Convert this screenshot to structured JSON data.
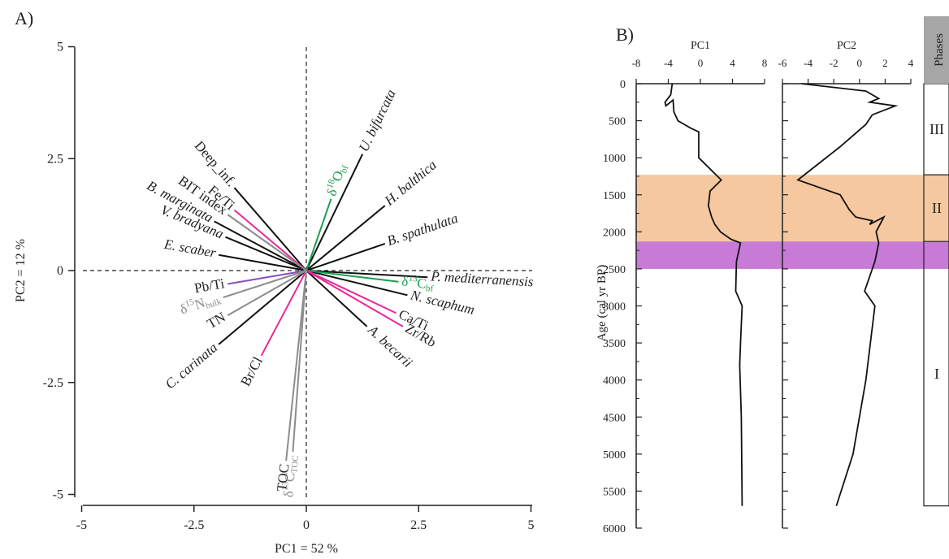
{
  "panels": {
    "a": "A)",
    "b": "B)"
  },
  "chart_data": [
    {
      "type": "scatter",
      "subtype": "pca-biplot",
      "panel": "A)",
      "title": "",
      "xlabel": "PC1 = 52 %",
      "ylabel": "PC2 = 12 %",
      "xlim": [
        -5,
        5
      ],
      "ylim": [
        -5,
        5
      ],
      "xticks": [
        "-5",
        "-2.5",
        "0",
        "2.5",
        "5"
      ],
      "yticks": [
        "5",
        "2.5",
        "0",
        "-2.5",
        "-5"
      ],
      "reference_lines": "dashed lines at x = 0 and y = 0",
      "grid": false,
      "vectors": [
        {
          "label": "U. bifurcata",
          "x": 1.25,
          "y": 2.6,
          "color": "#111111",
          "italic": true
        },
        {
          "label": "H. balthica",
          "x": 1.75,
          "y": 1.45,
          "color": "#111111",
          "italic": true
        },
        {
          "label": "B. spathulata",
          "x": 1.75,
          "y": 0.6,
          "color": "#111111",
          "italic": true
        },
        {
          "label": "P. mediterranensis",
          "x": 2.7,
          "y": -0.15,
          "color": "#111111",
          "italic": true
        },
        {
          "label": "N. scaphum",
          "x": 2.25,
          "y": -0.55,
          "color": "#111111",
          "italic": true
        },
        {
          "label": "A. becarii",
          "x": 1.35,
          "y": -1.25,
          "color": "#111111",
          "italic": true
        },
        {
          "label": "Deep_inf.",
          "x": -1.6,
          "y": 1.85,
          "color": "#111111",
          "italic": false
        },
        {
          "label": "B. marginata",
          "x": -2.05,
          "y": 1.1,
          "color": "#111111",
          "italic": true
        },
        {
          "label": "V. bradyana",
          "x": -1.8,
          "y": 0.75,
          "color": "#111111",
          "italic": true
        },
        {
          "label": "E. scaber",
          "x": -1.95,
          "y": 0.35,
          "color": "#111111",
          "italic": true
        },
        {
          "label": "C. carinata",
          "x": -1.95,
          "y": -1.65,
          "color": "#111111",
          "italic": true
        },
        {
          "label": "δ18Obf",
          "x": 0.55,
          "y": 1.6,
          "color": "#1e9e4f",
          "italic": false
        },
        {
          "label": "δ13Cbf",
          "x": 2.05,
          "y": -0.25,
          "color": "#1e9e4f",
          "italic": false
        },
        {
          "label": "Fe/Ti",
          "x": -1.6,
          "y": 1.35,
          "color": "#e8289a",
          "italic": false
        },
        {
          "label": "Ca/Ti",
          "x": 2.0,
          "y": -0.95,
          "color": "#e8289a",
          "italic": false
        },
        {
          "label": "Zr/Rb",
          "x": 2.15,
          "y": -1.25,
          "color": "#e8289a",
          "italic": false
        },
        {
          "label": "Br/Cl",
          "x": -1.0,
          "y": -1.9,
          "color": "#e8289a",
          "italic": false
        },
        {
          "label": "Pb/Ti",
          "x": -1.75,
          "y": -0.3,
          "color": "#8a4fbd",
          "italic": false
        },
        {
          "label": "BIT index",
          "x": -1.75,
          "y": 1.25,
          "color": "#8c8c8c",
          "italic": false
        },
        {
          "label": "δ15Nbulk",
          "x": -1.85,
          "y": -0.6,
          "color": "#8c8c8c",
          "italic": false
        },
        {
          "label": "TN",
          "x": -1.75,
          "y": -1.0,
          "color": "#8c8c8c",
          "italic": false
        },
        {
          "label": "TOC",
          "x": -0.45,
          "y": -4.25,
          "color": "#8c8c8c",
          "italic": false
        },
        {
          "label": "δ13CTOC",
          "x": -0.3,
          "y": -4.05,
          "color": "#8c8c8c",
          "italic": false
        }
      ]
    },
    {
      "type": "line",
      "panel": "B)",
      "ylabel": "Age (cal yr BP)",
      "ylim": [
        0,
        6000
      ],
      "y_inverted": true,
      "yticks": [
        "0",
        "500",
        "1000",
        "1500",
        "2000",
        "2500",
        "3000",
        "3500",
        "4000",
        "4500",
        "5000",
        "5500",
        "6000"
      ],
      "series": [
        {
          "name": "PC1",
          "xlim": [
            -8,
            8
          ],
          "xticks": [
            "-8",
            "-4",
            "0",
            "4",
            "8"
          ],
          "x": [
            -3.5,
            -3.7,
            -4.4,
            -4.3,
            -3.4,
            -3.3,
            -2.8,
            -1.2,
            -0.2,
            -0.2,
            2.6,
            1.2,
            1.0,
            1.4,
            1.8,
            2.5,
            3.8,
            5.0,
            4.5,
            4.4,
            5.2,
            5.0,
            4.9,
            5.1,
            5.2
          ],
          "y": [
            0,
            150,
            250,
            300,
            220,
            380,
            500,
            600,
            650,
            1000,
            1300,
            1450,
            1650,
            1800,
            1900,
            2000,
            2100,
            2150,
            2400,
            2800,
            3000,
            3500,
            3800,
            4500,
            5700
          ]
        },
        {
          "name": "PC2",
          "xlim": [
            -6,
            4
          ],
          "xticks": [
            "-6",
            "-4",
            "-2",
            "0",
            "2",
            "4"
          ],
          "x": [
            -4.5,
            0.5,
            1.5,
            0.8,
            2.8,
            1.0,
            0.5,
            -1.5,
            -4.8,
            -1.5,
            -0.8,
            -0.3,
            1.0,
            0.8,
            1.9,
            1.3,
            1.5,
            1.2,
            0.4,
            1.2,
            0.5,
            -0.5,
            -1.8
          ],
          "y": [
            0,
            100,
            200,
            250,
            300,
            420,
            550,
            850,
            1300,
            1500,
            1700,
            1800,
            1850,
            1900,
            1800,
            2000,
            2150,
            2400,
            2800,
            3000,
            4000,
            5000,
            5700
          ]
        }
      ],
      "phases": {
        "header": "Phases",
        "items": [
          {
            "label": "III",
            "from": 0,
            "to": 1230
          },
          {
            "label": "II",
            "from": 1230,
            "to": 2130
          },
          {
            "label": "I",
            "from": 2130,
            "to": 5700
          }
        ]
      },
      "bands": [
        {
          "from": 1230,
          "to": 2130,
          "color": "#f5c8a0"
        },
        {
          "from": 2130,
          "to": 2500,
          "color": "#c77ad6"
        }
      ],
      "grid": false
    }
  ]
}
